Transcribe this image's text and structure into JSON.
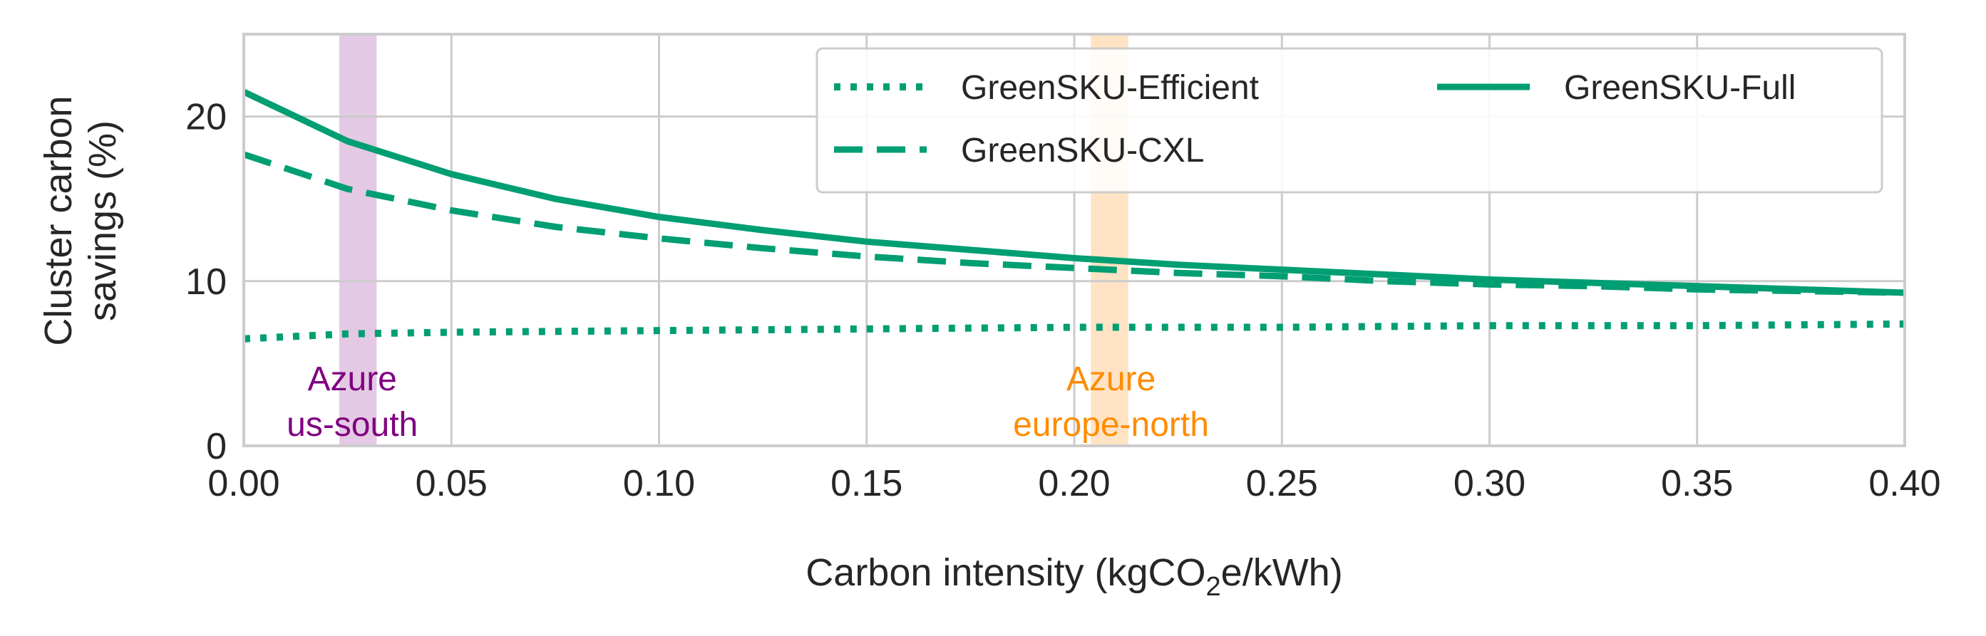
{
  "chart_data": {
    "type": "line",
    "xlabel_main": "Carbon intensity (kgCO",
    "xlabel_sub": "2",
    "xlabel_tail": "e/kWh)",
    "ylabel_line1": "Cluster carbon",
    "ylabel_line2": "savings (%)",
    "xlim": [
      0,
      0.4
    ],
    "ylim": [
      0,
      25
    ],
    "xticks": [
      "0.00",
      "0.05",
      "0.10",
      "0.15",
      "0.20",
      "0.25",
      "0.30",
      "0.35",
      "0.40"
    ],
    "yticks": [
      "0",
      "10",
      "20"
    ],
    "grid": true,
    "legend_position": "top-right",
    "series": [
      {
        "name": "GreenSKU-Efficient",
        "style": "dotted",
        "color": "#009e73",
        "x": [
          0,
          0.025,
          0.05,
          0.1,
          0.15,
          0.2,
          0.25,
          0.3,
          0.35,
          0.4
        ],
        "y": [
          6.5,
          6.8,
          6.9,
          7.0,
          7.1,
          7.2,
          7.2,
          7.3,
          7.3,
          7.4
        ]
      },
      {
        "name": "GreenSKU-CXL",
        "style": "dashed",
        "color": "#009e73",
        "x": [
          0,
          0.025,
          0.05,
          0.075,
          0.1,
          0.125,
          0.15,
          0.175,
          0.2,
          0.225,
          0.25,
          0.275,
          0.3,
          0.325,
          0.35,
          0.375,
          0.4
        ],
        "y": [
          17.7,
          15.6,
          14.3,
          13.3,
          12.6,
          12.0,
          11.5,
          11.1,
          10.8,
          10.5,
          10.3,
          10.0,
          9.8,
          9.7,
          9.5,
          9.4,
          9.3
        ]
      },
      {
        "name": "GreenSKU-Full",
        "style": "solid",
        "color": "#009e73",
        "x": [
          0,
          0.025,
          0.05,
          0.075,
          0.1,
          0.125,
          0.15,
          0.175,
          0.2,
          0.225,
          0.25,
          0.275,
          0.3,
          0.325,
          0.35,
          0.375,
          0.4
        ],
        "y": [
          21.5,
          18.5,
          16.5,
          15.0,
          13.9,
          13.1,
          12.4,
          11.9,
          11.4,
          11.0,
          10.7,
          10.4,
          10.1,
          9.9,
          9.7,
          9.5,
          9.3
        ]
      }
    ],
    "regions": [
      {
        "line1": "Azure",
        "line2": "us-south",
        "x_center": 0.0275,
        "x_half_width": 0.0045,
        "color": "#800080",
        "band_color": "#e4c9e4"
      },
      {
        "line1": "Azure",
        "line2": "europe-north",
        "x_center": 0.2085,
        "x_half_width": 0.0045,
        "color": "#ff8c00",
        "band_color": "#ffe3c4"
      }
    ],
    "legend_order": [
      0,
      2,
      1
    ]
  }
}
